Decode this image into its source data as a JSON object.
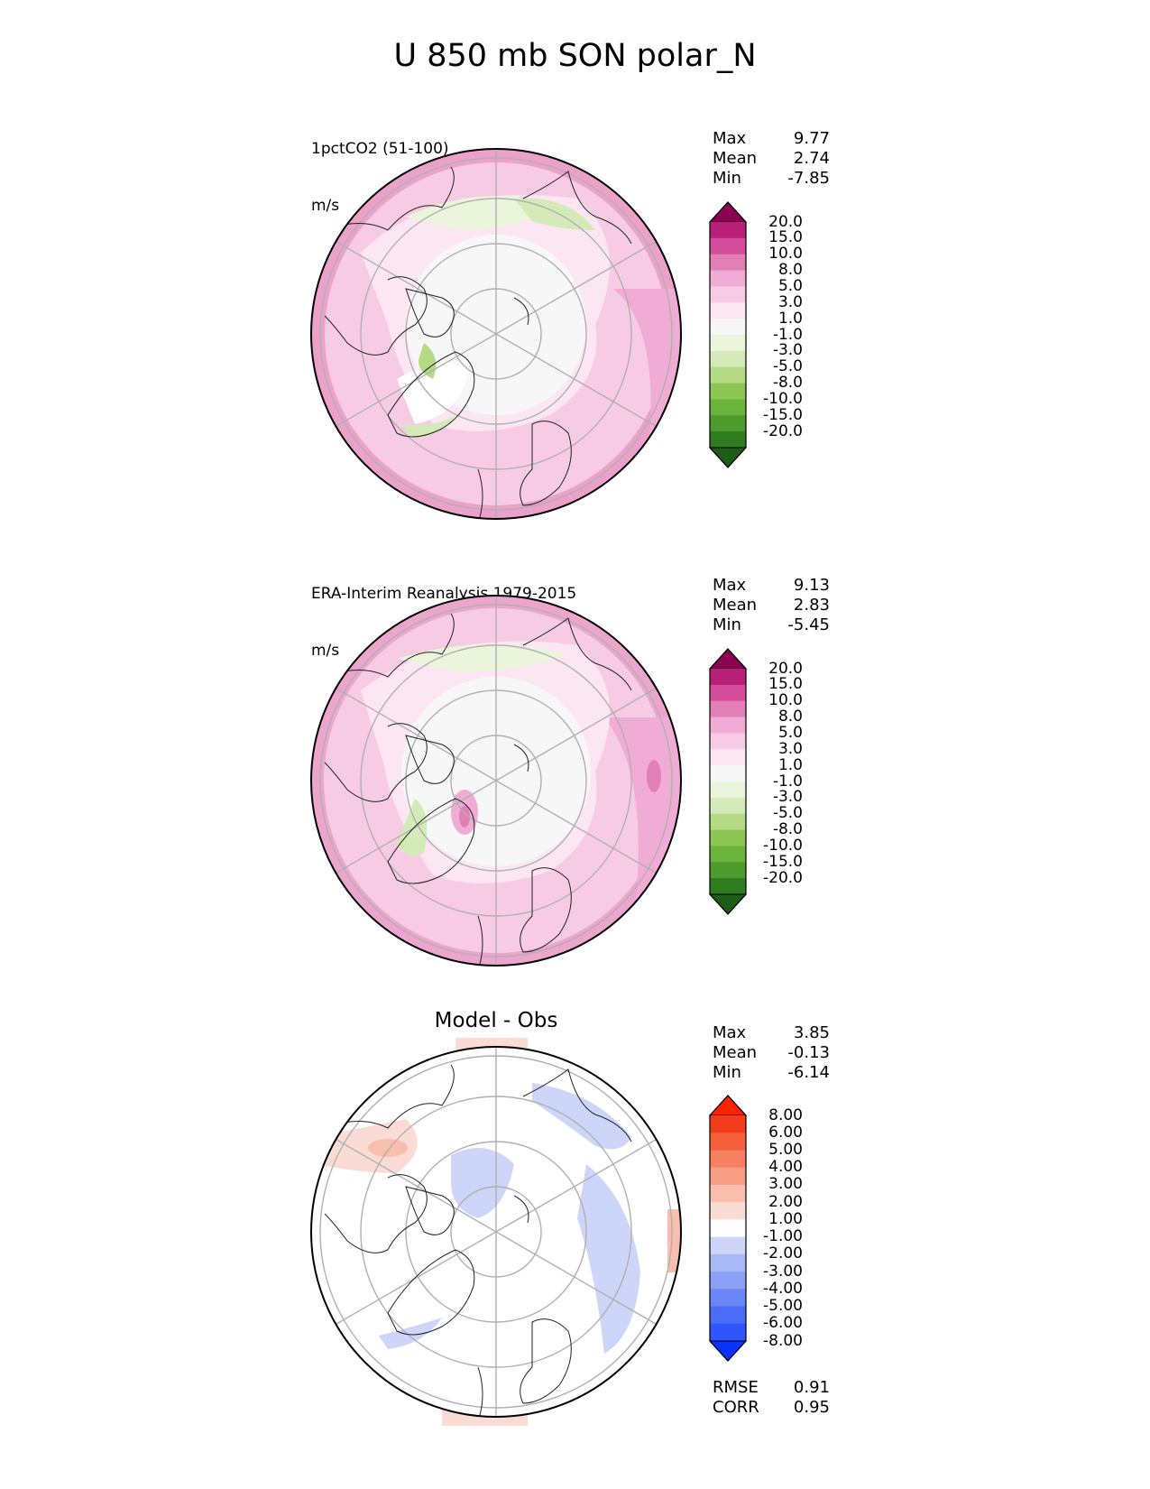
{
  "figure_title": "U 850 mb SON polar_N",
  "panels": [
    {
      "title_line1": "1pctCO2 (51-100)",
      "title_line2": "m/s",
      "stats": [
        {
          "label": "Max",
          "value": "9.77"
        },
        {
          "label": "Mean",
          "value": "2.74"
        },
        {
          "label": "Min",
          "value": "-7.85"
        }
      ],
      "colorbar_labels": [
        "20.0",
        "15.0",
        "10.0",
        "8.0",
        "5.0",
        "3.0",
        "1.0",
        "-1.0",
        "-3.0",
        "-5.0",
        "-8.0",
        "-10.0",
        "-15.0",
        "-20.0"
      ]
    },
    {
      "title_line1": "ERA-Interim Reanalysis 1979-2015",
      "title_line2": "m/s",
      "stats": [
        {
          "label": "Max",
          "value": "9.13"
        },
        {
          "label": "Mean",
          "value": "2.83"
        },
        {
          "label": "Min",
          "value": "-5.45"
        }
      ],
      "colorbar_labels": [
        "20.0",
        "15.0",
        "10.0",
        "8.0",
        "5.0",
        "3.0",
        "1.0",
        "-1.0",
        "-3.0",
        "-5.0",
        "-8.0",
        "-10.0",
        "-15.0",
        "-20.0"
      ]
    },
    {
      "title": "Model - Obs",
      "stats": [
        {
          "label": "Max",
          "value": "3.85"
        },
        {
          "label": "Mean",
          "value": "-0.13"
        },
        {
          "label": "Min",
          "value": "-6.14"
        }
      ],
      "colorbar_labels": [
        "8.00",
        "6.00",
        "5.00",
        "4.00",
        "3.00",
        "2.00",
        "1.00",
        "-1.00",
        "-2.00",
        "-3.00",
        "-4.00",
        "-5.00",
        "-6.00",
        "-8.00"
      ],
      "extra_stats": [
        {
          "label": "RMSE",
          "value": "0.91"
        },
        {
          "label": "CORR",
          "value": "0.95"
        }
      ]
    }
  ],
  "chart_data": [
    {
      "type": "heatmap",
      "projection": "north-polar-stereographic",
      "title": "1pctCO2 (51-100)",
      "units": "m/s",
      "levels": [
        -20,
        -15,
        -10,
        -8,
        -5,
        -3,
        -1,
        1,
        3,
        5,
        8,
        10,
        15,
        20
      ],
      "colormap": [
        "#1f5c1a",
        "#2f7b1f",
        "#4e9a2c",
        "#6ab43c",
        "#8dc654",
        "#b5da84",
        "#d4eab8",
        "#eaf5dc",
        "#f7f7f7",
        "#fbe6f1",
        "#f7cbe3",
        "#f0acd4",
        "#e27fb6",
        "#d44e9c",
        "#b81f79",
        "#8e0152"
      ],
      "stats": {
        "max": 9.77,
        "mean": 2.74,
        "min": -7.85
      }
    },
    {
      "type": "heatmap",
      "projection": "north-polar-stereographic",
      "title": "ERA-Interim Reanalysis 1979-2015",
      "units": "m/s",
      "levels": [
        -20,
        -15,
        -10,
        -8,
        -5,
        -3,
        -1,
        1,
        3,
        5,
        8,
        10,
        15,
        20
      ],
      "colormap": [
        "#1f5c1a",
        "#2f7b1f",
        "#4e9a2c",
        "#6ab43c",
        "#8dc654",
        "#b5da84",
        "#d4eab8",
        "#eaf5dc",
        "#f7f7f7",
        "#fbe6f1",
        "#f7cbe3",
        "#f0acd4",
        "#e27fb6",
        "#d44e9c",
        "#b81f79",
        "#8e0152"
      ],
      "stats": {
        "max": 9.13,
        "mean": 2.83,
        "min": -5.45
      }
    },
    {
      "type": "heatmap",
      "projection": "north-polar-stereographic",
      "title": "Model - Obs",
      "levels": [
        -8,
        -6,
        -5,
        -4,
        -3,
        -2,
        -1,
        1,
        2,
        3,
        4,
        5,
        6,
        8
      ],
      "colormap": [
        "#0a32ff",
        "#2e55ff",
        "#4a6cf7",
        "#6a86f7",
        "#8ca0f7",
        "#aabaf7",
        "#cdd6f9",
        "#ffffff",
        "#fbdcd4",
        "#f9bfae",
        "#f89e86",
        "#f6805f",
        "#f45f3c",
        "#f23d1d",
        "#ff2200"
      ],
      "stats": {
        "max": 3.85,
        "mean": -0.13,
        "min": -6.14,
        "rmse": 0.91,
        "corr": 0.95
      }
    }
  ]
}
